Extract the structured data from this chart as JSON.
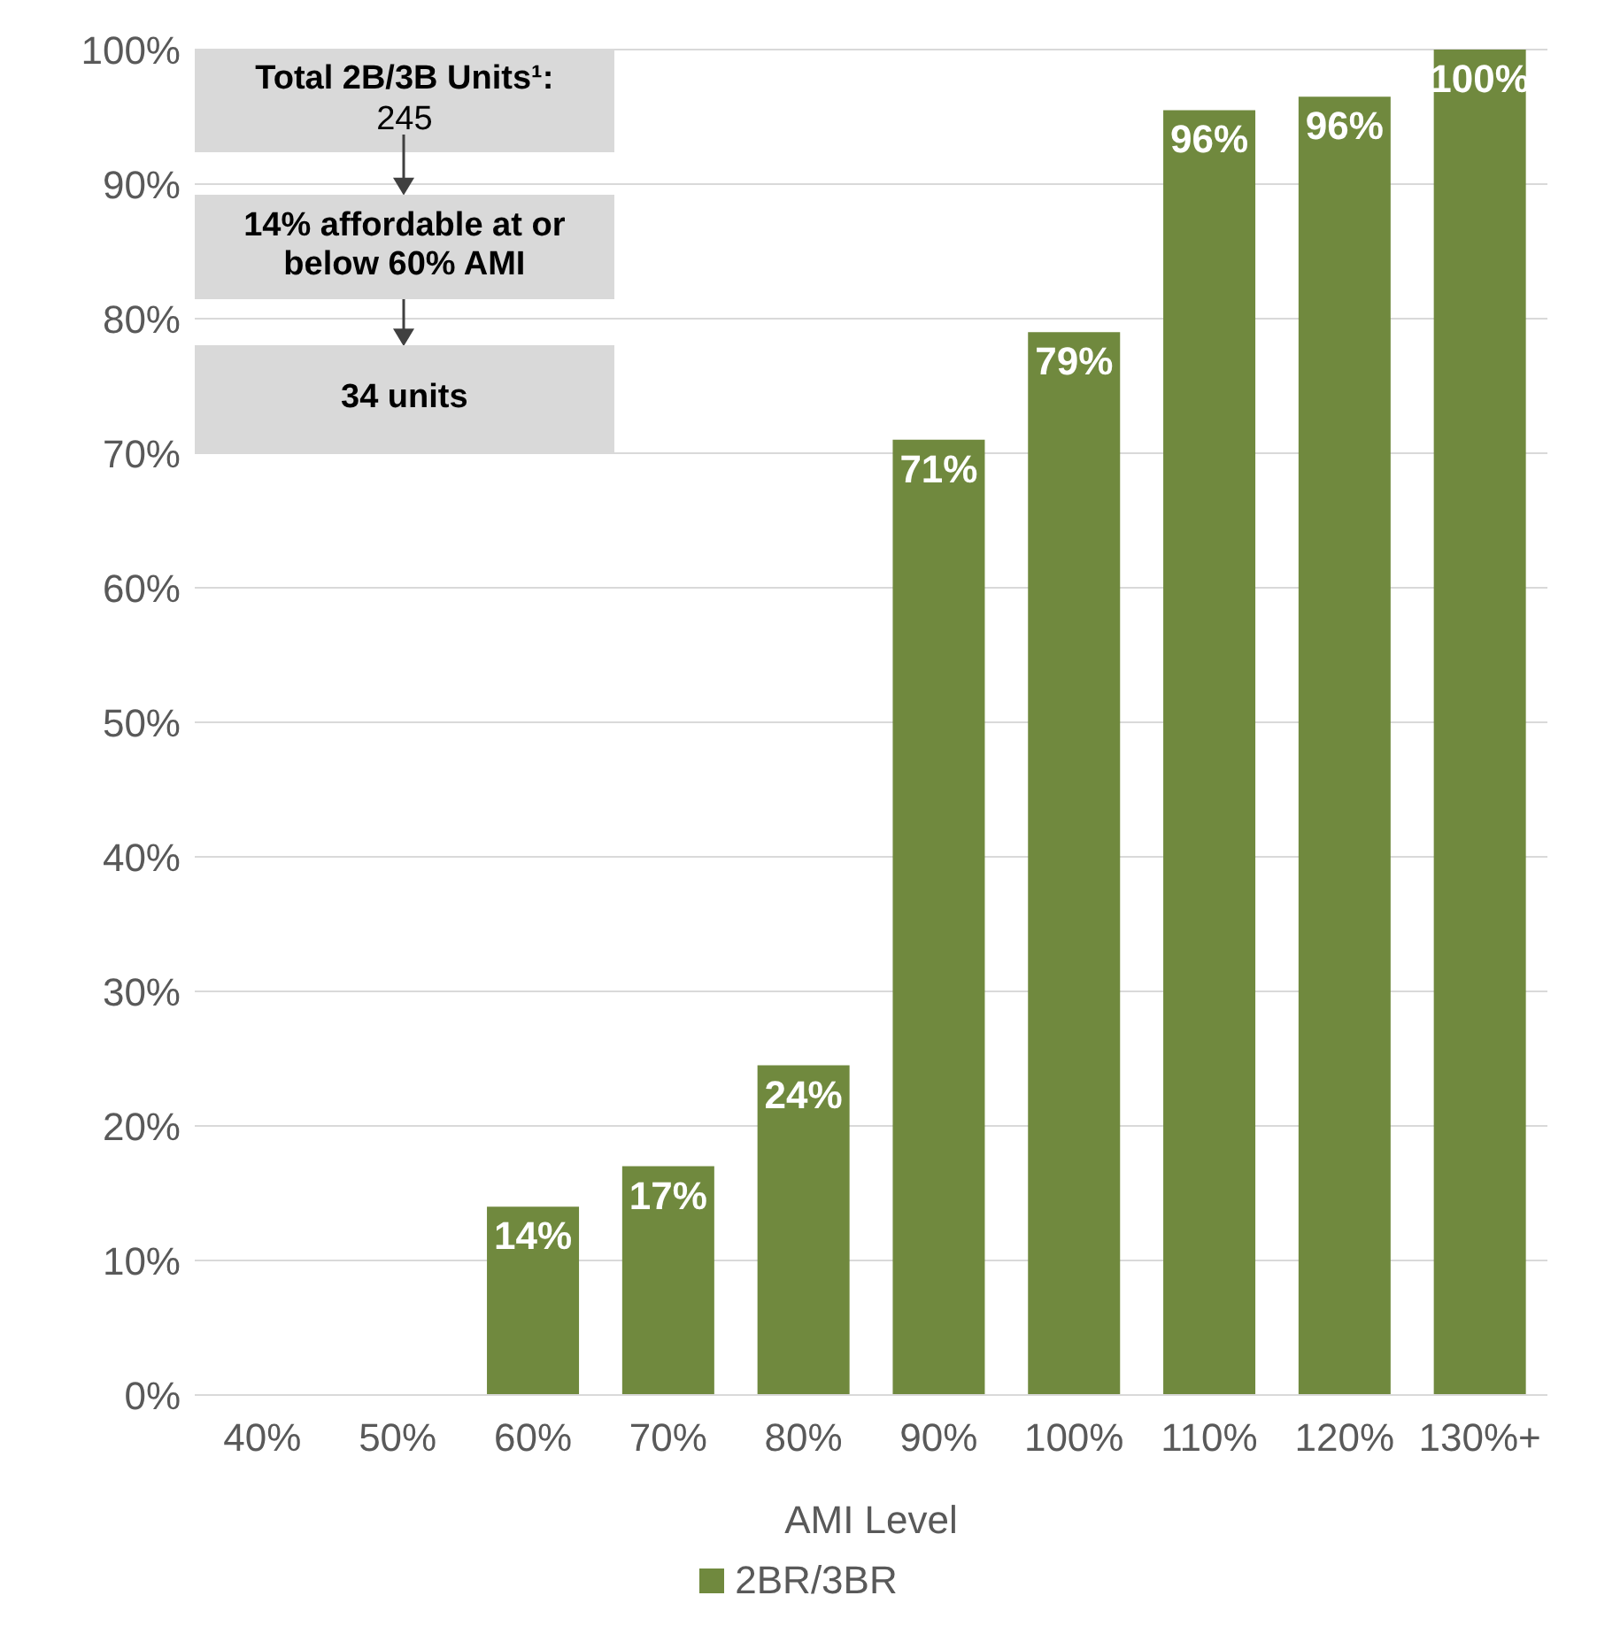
{
  "chart_data": {
    "type": "bar",
    "xlabel": "AMI Level",
    "categories": [
      "40%",
      "50%",
      "60%",
      "70%",
      "80%",
      "90%",
      "100%",
      "110%",
      "120%",
      "130%+"
    ],
    "series": [
      {
        "name": "2BR/3BR",
        "color": "#70893e",
        "values": [
          0,
          0,
          14,
          17,
          24.5,
          71,
          79,
          95.5,
          96.5,
          100
        ],
        "value_labels": [
          null,
          null,
          "14%",
          "17%",
          "24%",
          "71%",
          "79%",
          "96%",
          "96%",
          "100%"
        ]
      }
    ],
    "ylim": [
      0,
      100
    ],
    "yticks": [
      {
        "value": 0,
        "label": "0%"
      },
      {
        "value": 10,
        "label": "10%"
      },
      {
        "value": 20,
        "label": "20%"
      },
      {
        "value": 30,
        "label": "30%"
      },
      {
        "value": 40,
        "label": "40%"
      },
      {
        "value": 50,
        "label": "50%"
      },
      {
        "value": 60,
        "label": "60%"
      },
      {
        "value": 70,
        "label": "70%"
      },
      {
        "value": 80,
        "label": "80%"
      },
      {
        "value": 90,
        "label": "90%"
      },
      {
        "value": 100,
        "label": "100%"
      }
    ],
    "grid": "y",
    "legend": "bottom",
    "annotations": [
      "Total 2B/3B Units¹:",
      "245",
      "14% affordable  at or below 60% AMI",
      "34 units"
    ]
  }
}
